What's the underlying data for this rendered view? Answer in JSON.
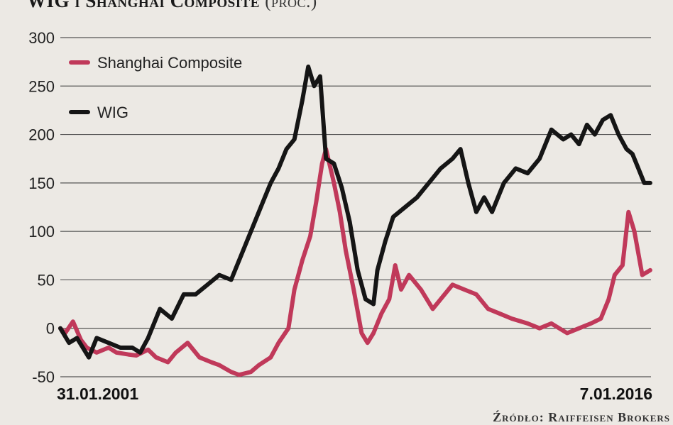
{
  "header": {
    "title": "WIG i Shanghai Composite",
    "subtitle": "(proc.)"
  },
  "source": "Źródło: Raiffeisen Brokers",
  "chart_data": {
    "type": "line",
    "title": "WIG i Shanghai Composite",
    "ylabel": "",
    "xlabel": "",
    "ylim": [
      -50,
      300
    ],
    "yticks": [
      -50,
      0,
      50,
      100,
      150,
      200,
      250,
      300
    ],
    "yticks_labels": [
      "-50",
      "0",
      "50",
      "100",
      "150",
      "200",
      "250",
      "300"
    ],
    "x_range": [
      "31.01.2001",
      "7.01.2016"
    ],
    "x_labels": [
      "31.01.2001",
      "7.01.2016"
    ],
    "grid": "horizontal",
    "legend_position": "top-left",
    "series": [
      {
        "name": "Shanghai Composite",
        "color": "#c0395a",
        "x": [
          2001.08,
          2001.2,
          2001.4,
          2001.6,
          2001.75,
          2002.0,
          2002.3,
          2002.5,
          2002.8,
          2003.0,
          2003.3,
          2003.5,
          2003.8,
          2004.0,
          2004.3,
          2004.6,
          2004.9,
          2005.1,
          2005.4,
          2005.6,
          2005.9,
          2006.1,
          2006.4,
          2006.6,
          2006.85,
          2007.0,
          2007.2,
          2007.4,
          2007.55,
          2007.7,
          2007.8,
          2008.0,
          2008.15,
          2008.3,
          2008.5,
          2008.7,
          2008.85,
          2009.0,
          2009.2,
          2009.4,
          2009.55,
          2009.7,
          2009.9,
          2010.2,
          2010.5,
          2010.8,
          2011.0,
          2011.3,
          2011.6,
          2011.9,
          2012.2,
          2012.5,
          2012.9,
          2013.2,
          2013.5,
          2013.9,
          2014.2,
          2014.5,
          2014.75,
          2014.95,
          2015.1,
          2015.3,
          2015.45,
          2015.6,
          2015.8,
          2016.0
        ],
        "values": [
          0,
          -5,
          7,
          -12,
          -20,
          -25,
          -20,
          -25,
          -27,
          -28,
          -22,
          -30,
          -35,
          -25,
          -15,
          -30,
          -35,
          -38,
          -45,
          -48,
          -45,
          -38,
          -30,
          -15,
          0,
          40,
          70,
          95,
          130,
          170,
          185,
          150,
          120,
          80,
          40,
          -5,
          -15,
          -5,
          15,
          30,
          65,
          40,
          55,
          40,
          20,
          35,
          45,
          40,
          35,
          20,
          15,
          10,
          5,
          0,
          5,
          -5,
          0,
          5,
          10,
          30,
          55,
          65,
          120,
          100,
          55,
          60
        ]
      },
      {
        "name": "WIG",
        "color": "#151515",
        "x": [
          2001.08,
          2001.3,
          2001.5,
          2001.8,
          2002.0,
          2002.3,
          2002.6,
          2002.9,
          2003.1,
          2003.3,
          2003.6,
          2003.9,
          2004.2,
          2004.5,
          2004.8,
          2005.1,
          2005.4,
          2005.7,
          2006.0,
          2006.2,
          2006.4,
          2006.6,
          2006.8,
          2007.0,
          2007.2,
          2007.35,
          2007.5,
          2007.65,
          2007.8,
          2008.0,
          2008.2,
          2008.4,
          2008.6,
          2008.8,
          2009.0,
          2009.1,
          2009.3,
          2009.5,
          2009.8,
          2010.1,
          2010.4,
          2010.7,
          2011.0,
          2011.2,
          2011.4,
          2011.6,
          2011.8,
          2012.0,
          2012.3,
          2012.6,
          2012.9,
          2013.2,
          2013.5,
          2013.8,
          2014.0,
          2014.2,
          2014.4,
          2014.6,
          2014.8,
          2015.0,
          2015.2,
          2015.4,
          2015.55,
          2015.7,
          2015.85,
          2016.0
        ],
        "values": [
          0,
          -15,
          -10,
          -30,
          -10,
          -15,
          -20,
          -20,
          -25,
          -10,
          20,
          10,
          35,
          35,
          45,
          55,
          50,
          80,
          110,
          130,
          150,
          165,
          185,
          195,
          235,
          270,
          250,
          260,
          175,
          170,
          145,
          110,
          60,
          30,
          25,
          60,
          90,
          115,
          125,
          135,
          150,
          165,
          175,
          185,
          150,
          120,
          135,
          120,
          150,
          165,
          160,
          175,
          205,
          195,
          200,
          190,
          210,
          200,
          215,
          220,
          200,
          185,
          180,
          165,
          150,
          150
        ]
      }
    ]
  }
}
